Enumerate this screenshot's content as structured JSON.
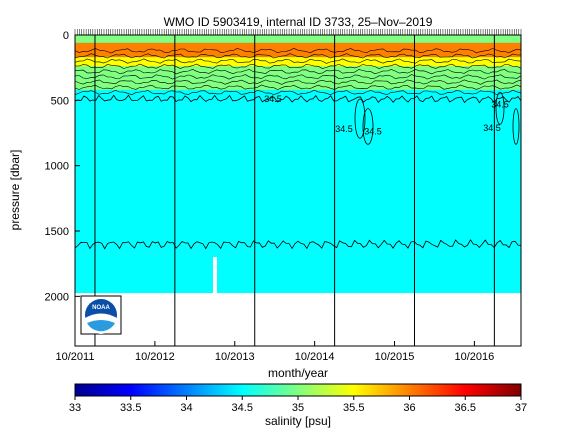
{
  "chart_data": {
    "type": "heatmap",
    "title": "WMO ID 5903419, internal ID 3733, 25–Nov–2019",
    "xlabel": "month/year",
    "ylabel": "pressure [dbar]",
    "colorbar_label": "salinity [psu]",
    "x_ticks": [
      "10/2011",
      "10/2012",
      "10/2013",
      "10/2014",
      "10/2015",
      "10/2016"
    ],
    "x_range": [
      "2011-10",
      "2017-05"
    ],
    "y_ticks": [
      0,
      500,
      1000,
      1500,
      2000
    ],
    "y_range": [
      0,
      2380
    ],
    "y_reversed": true,
    "colorbar_ticks": [
      33,
      33.5,
      34,
      34.5,
      35,
      35.5,
      36,
      36.5,
      37
    ],
    "colorbar_range": [
      33,
      37
    ],
    "colormap": [
      "#00008f",
      "#0000ff",
      "#0080ff",
      "#00ffff",
      "#80ff80",
      "#ffff00",
      "#ff8000",
      "#ff0000",
      "#800000"
    ],
    "field": {
      "background_salinity": 34.55,
      "max_pressure_dbar": 1975,
      "surface_layers": [
        {
          "from_dbar": 0,
          "to_dbar": 60,
          "salinity": 35.0
        },
        {
          "from_dbar": 60,
          "to_dbar": 170,
          "salinity": 36.1
        },
        {
          "from_dbar": 170,
          "to_dbar": 240,
          "salinity": 35.7
        },
        {
          "from_dbar": 240,
          "to_dbar": 320,
          "salinity": 35.2
        },
        {
          "from_dbar": 320,
          "to_dbar": 420,
          "salinity": 34.9
        }
      ]
    },
    "contours": [
      {
        "label": "34.5",
        "approx_pressure_dbar": 490
      },
      {
        "label": "34.5",
        "approx_pressure_dbar": 720
      },
      {
        "label": "34.5",
        "approx_pressure_dbar": 740
      },
      {
        "label": "34.5",
        "approx_pressure_dbar": 530
      },
      {
        "label": "34.5",
        "approx_pressure_dbar": 710
      },
      {
        "label": "",
        "approx_pressure_dbar": 1600
      }
    ],
    "annual_markers": [
      "2012-01",
      "2013-01",
      "2014-01",
      "2015-01",
      "2016-01",
      "2017-01"
    ],
    "grid": false,
    "legend": "colorbar-bottom"
  },
  "logo": {
    "name": "noaa-logo",
    "text": "NOAA"
  }
}
